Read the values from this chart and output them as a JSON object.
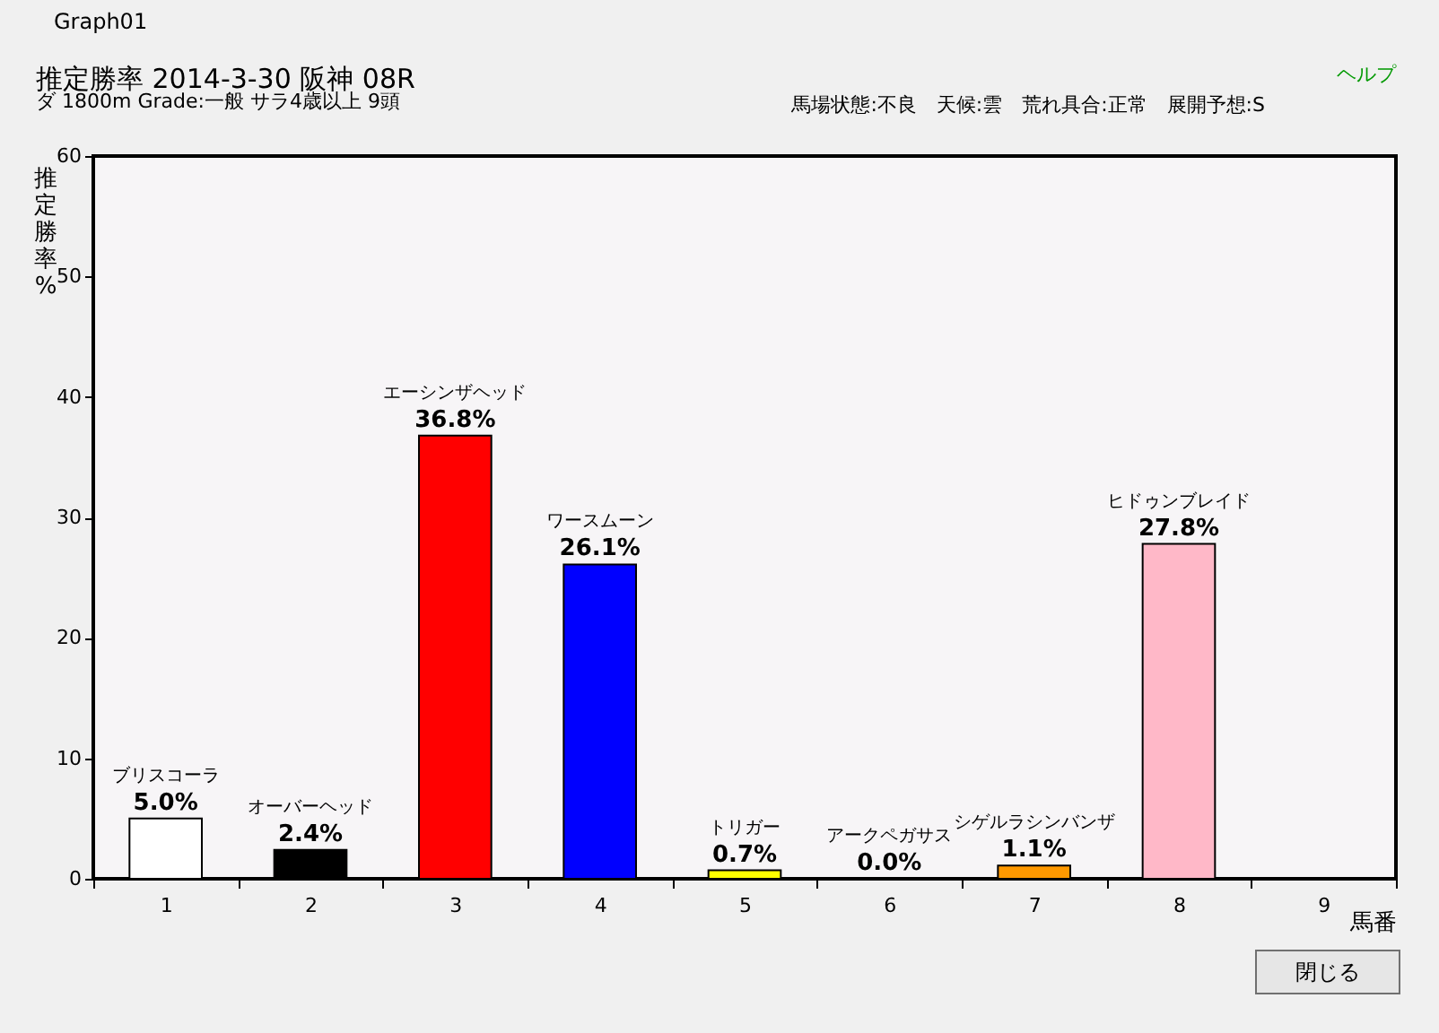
{
  "chart_data": {
    "type": "bar",
    "title": "推定勝率 2014-3-30 阪神 08R",
    "subtitle": "ダ 1800m Grade:一般 サラ4歳以上 9頭",
    "xlabel": "馬番",
    "ylabel": "推定勝率%",
    "categories": [
      "1",
      "2",
      "3",
      "4",
      "5",
      "6",
      "7",
      "8",
      "9"
    ],
    "values": [
      5.0,
      2.4,
      36.8,
      26.1,
      0.7,
      0.0,
      1.1,
      27.8,
      null
    ],
    "colors": [
      "#ffffff",
      "#000000",
      "#ff0000",
      "#0000ff",
      "#ffff00",
      "#00a000",
      "#ff9900",
      "#ffb8c8",
      "#ffb8c8"
    ],
    "value_labels": [
      "5.0%",
      "2.4%",
      "36.8%",
      "26.1%",
      "0.7%",
      "0.0%",
      "1.1%",
      "27.8%",
      null
    ],
    "ylim": [
      0,
      60
    ],
    "yticks": [
      0,
      10,
      20,
      30,
      40,
      50,
      60
    ],
    "annotations": [
      "馬場状態:不良　天候:雲　荒れ具合:正常　展開予想:S",
      "ヘルプ",
      "閉じる",
      "Graph01",
      {
        "text": "ブリスコーラ",
        "x": "1",
        "y": 5.0
      },
      {
        "text": "オーバーヘッド",
        "x": "2",
        "y": 2.4
      },
      {
        "text": "エーシンザヘッド",
        "x": "3",
        "y": 36.8
      },
      {
        "text": "ワースムーン",
        "x": "4",
        "y": 26.1
      },
      {
        "text": "トリガー",
        "x": "5",
        "y": 0.7
      },
      {
        "text": "アークペガサス",
        "x": "6",
        "y": 0.0
      },
      {
        "text": "シゲルラシンバンザ",
        "x": "7",
        "y": 1.1
      },
      {
        "text": "ヒドゥンブレイド",
        "x": "8",
        "y": 27.8
      }
    ]
  }
}
